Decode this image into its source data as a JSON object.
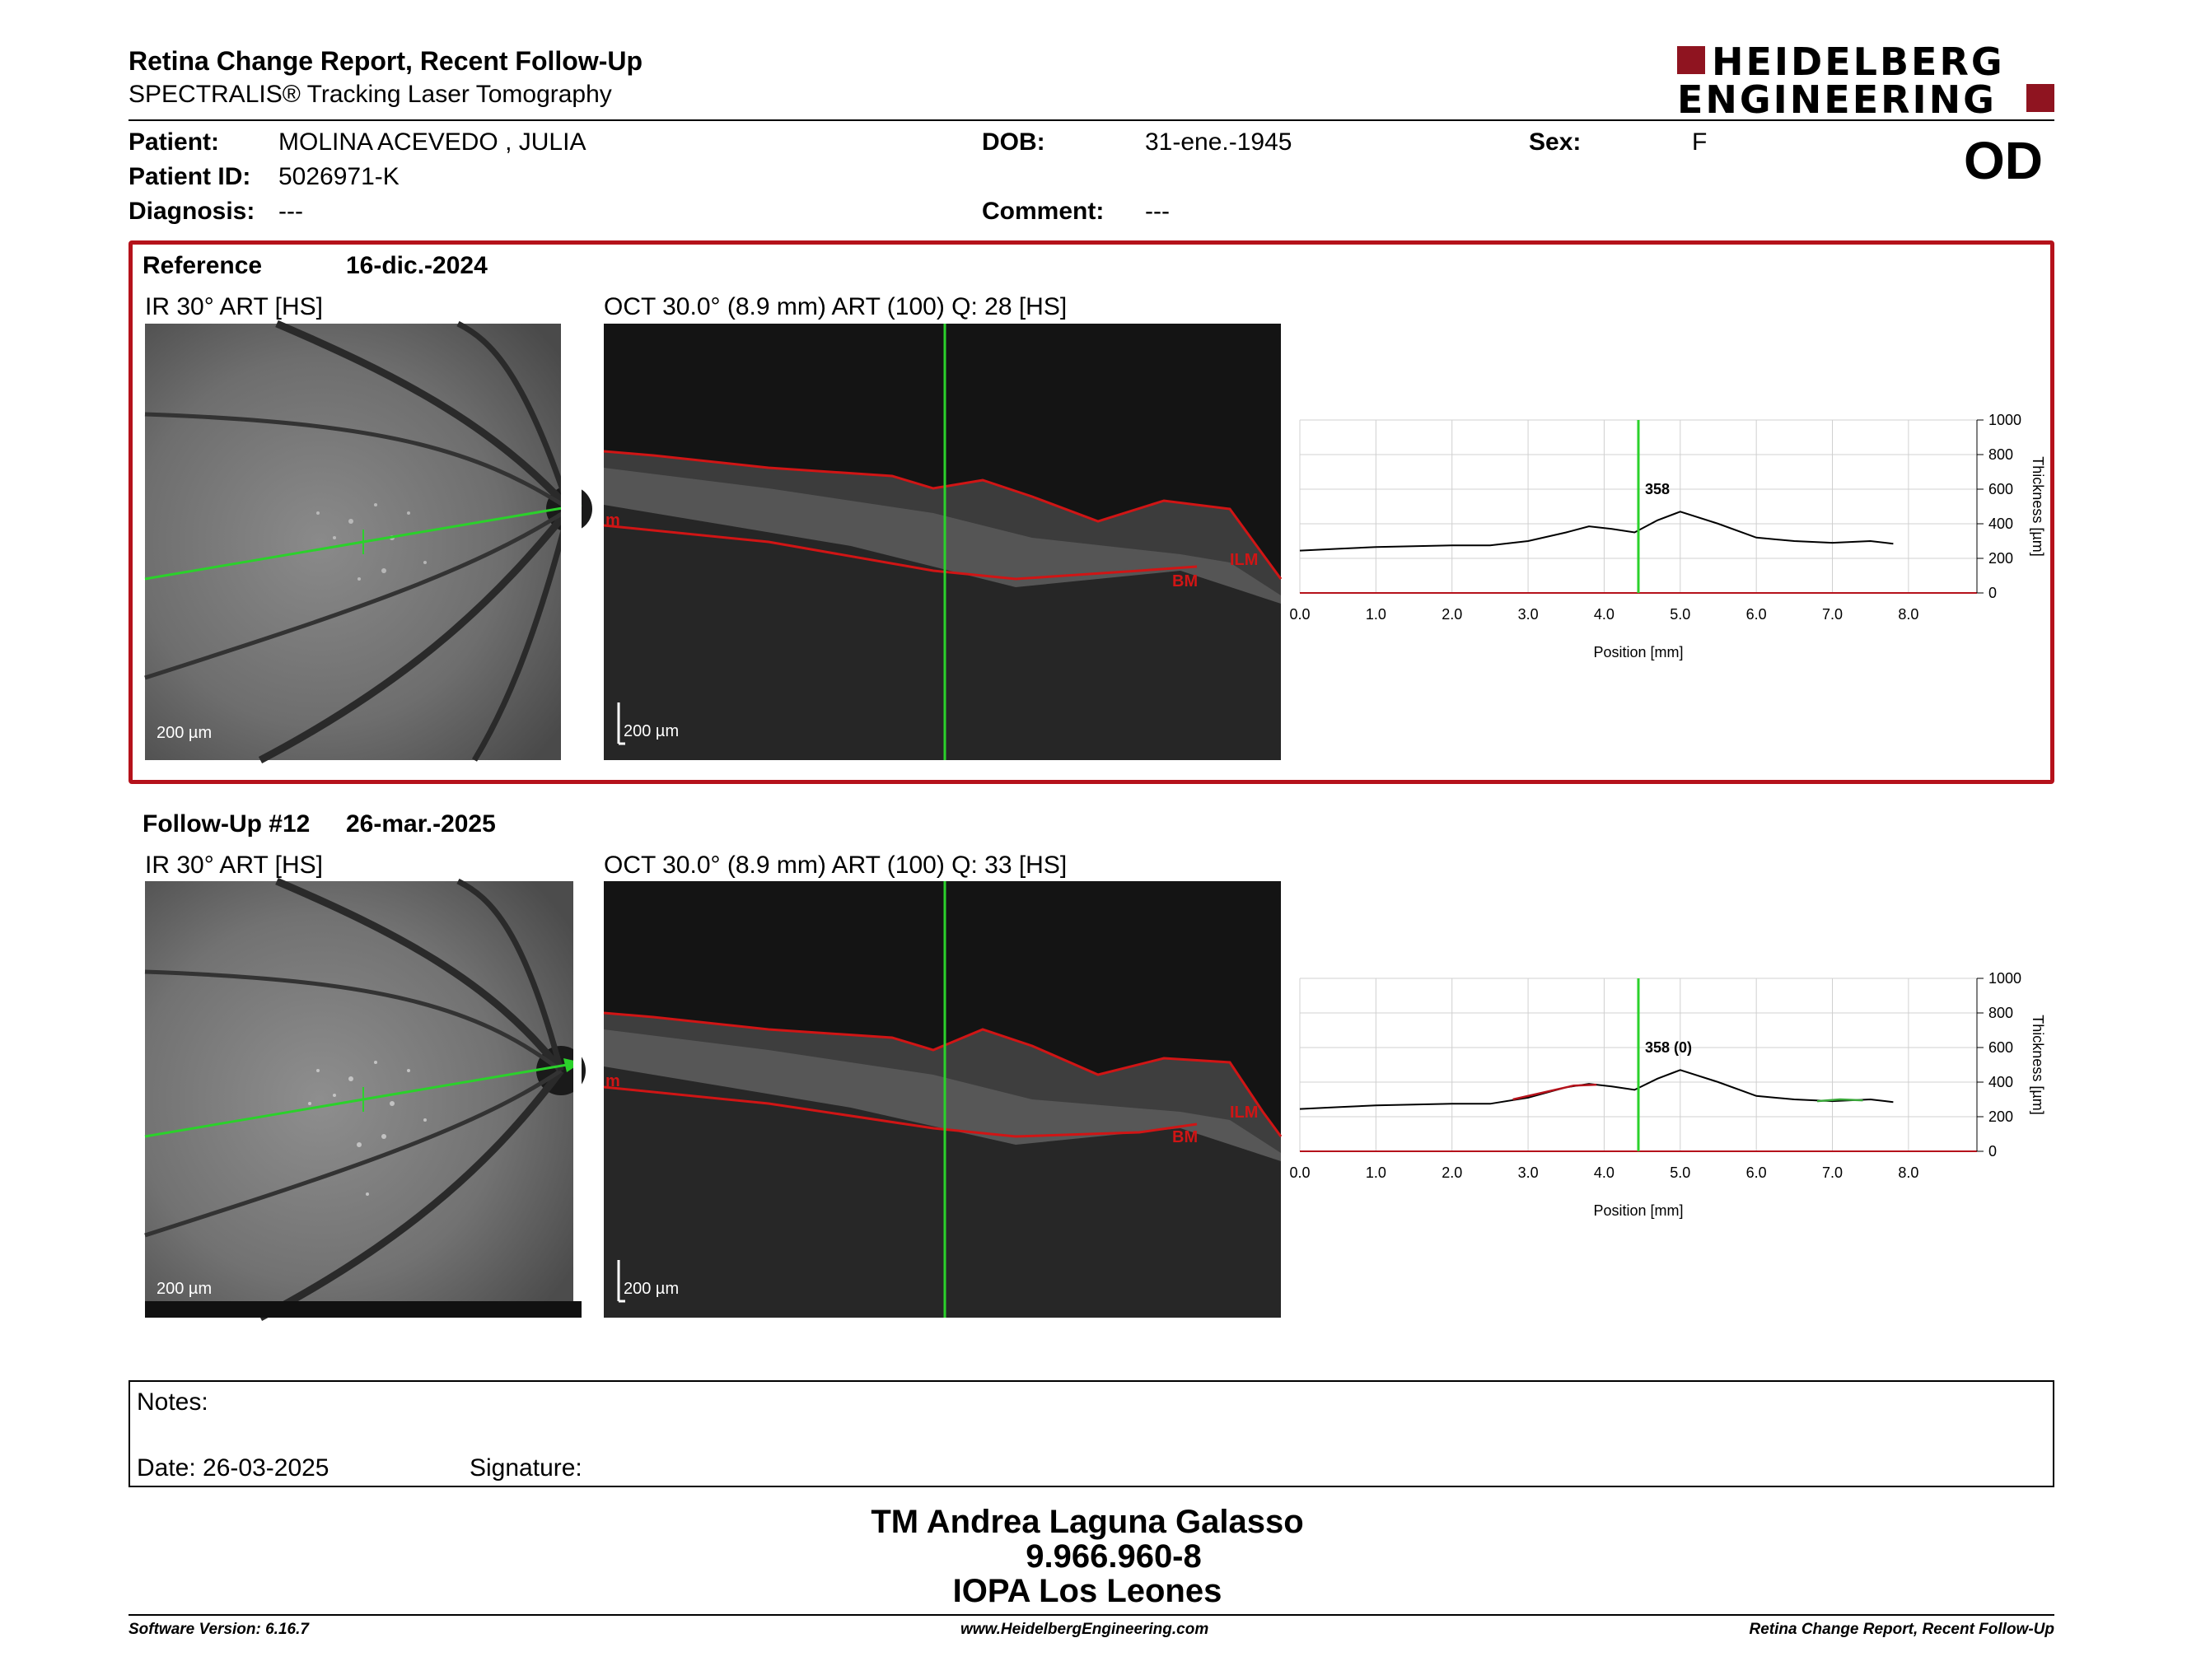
{
  "header": {
    "title": "Retina Change Report, Recent Follow-Up",
    "subtitle": "SPECTRALIS® Tracking Laser Tomography",
    "logo_line1": "HEIDELBERG",
    "logo_line2": "ENGINEERING"
  },
  "patient": {
    "patient_label": "Patient:",
    "patient_value": "MOLINA ACEVEDO , JULIA",
    "id_label": "Patient ID:",
    "id_value": "5026971-K",
    "diagnosis_label": "Diagnosis:",
    "diagnosis_value": "---",
    "dob_label": "DOB:",
    "dob_value": "31-ene.-1945",
    "comment_label": "Comment:",
    "comment_value": "---",
    "sex_label": "Sex:",
    "sex_value": "F",
    "eye": "OD"
  },
  "reference": {
    "label": "Reference",
    "date": "16-dic.-2024",
    "ir_caption": "IR 30° ART [HS]",
    "oct_caption": "OCT 30.0° (8.9 mm) ART (100) Q: 28 [HS]",
    "ir_scale": "200 µm",
    "oct_scale": "200 µm",
    "oct_labels": {
      "ilm": "ILM",
      "bm": "BM",
      "m": "m"
    }
  },
  "followup": {
    "label": "Follow-Up #12",
    "date": "26-mar.-2025",
    "ir_caption": "IR 30° ART [HS]",
    "oct_caption": "OCT 30.0° (8.9 mm) ART (100) Q: 33 [HS]",
    "ir_scale": "200 µm",
    "oct_scale": "200 µm",
    "oct_labels": {
      "ilm": "ILM",
      "bm": "BM",
      "m": "m"
    }
  },
  "chart_data": [
    {
      "type": "line",
      "xlabel": "Position [mm]",
      "ylabel": "Thickness [µm]",
      "xlim": [
        0,
        8.9
      ],
      "ylim": [
        0,
        1000
      ],
      "xticks": [
        "0.0",
        "1.0",
        "2.0",
        "3.0",
        "4.0",
        "5.0",
        "6.0",
        "7.0",
        "8.0"
      ],
      "yticks": [
        "0",
        "200",
        "400",
        "600",
        "800",
        "1000"
      ],
      "marker_x": 4.45,
      "marker_label": "358",
      "grid": true,
      "series": [
        {
          "color": "#000000",
          "x": [
            0,
            0.5,
            1,
            1.5,
            2,
            2.5,
            3,
            3.5,
            3.8,
            4.1,
            4.4,
            4.7,
            5.0,
            5.5,
            6.0,
            6.5,
            7.0,
            7.5,
            7.8
          ],
          "y": [
            245,
            255,
            265,
            270,
            275,
            275,
            300,
            350,
            385,
            370,
            350,
            420,
            470,
            400,
            320,
            300,
            290,
            300,
            285
          ]
        }
      ]
    },
    {
      "type": "line",
      "xlabel": "Position [mm]",
      "ylabel": "Thickness [µm]",
      "xlim": [
        0,
        8.9
      ],
      "ylim": [
        0,
        1000
      ],
      "xticks": [
        "0.0",
        "1.0",
        "2.0",
        "3.0",
        "4.0",
        "5.0",
        "6.0",
        "7.0",
        "8.0"
      ],
      "yticks": [
        "0",
        "200",
        "400",
        "600",
        "800",
        "1000"
      ],
      "marker_x": 4.45,
      "marker_label": "358 (0)",
      "grid": true,
      "series": [
        {
          "color": "#000000",
          "x": [
            0,
            0.5,
            1,
            1.5,
            2,
            2.5,
            3,
            3.5,
            3.8,
            4.1,
            4.4,
            4.7,
            5.0,
            5.5,
            6.0,
            6.5,
            7.0,
            7.5,
            7.8
          ],
          "y": [
            245,
            255,
            265,
            270,
            275,
            275,
            310,
            370,
            390,
            375,
            355,
            420,
            470,
            400,
            320,
            300,
            290,
            300,
            285
          ]
        },
        {
          "color": "#b5121b",
          "x": [
            2.8,
            3.2,
            3.6,
            3.9
          ],
          "y": [
            300,
            340,
            380,
            385
          ]
        },
        {
          "color": "#3aa83a",
          "x": [
            6.8,
            7.1,
            7.4
          ],
          "y": [
            290,
            300,
            295
          ]
        }
      ]
    }
  ],
  "notes": {
    "label": "Notes:",
    "date_label": "Date: 26-03-2025",
    "signature_label": "Signature:"
  },
  "signature": {
    "name": "TM Andrea Laguna Galasso",
    "rut": "9.966.960-8",
    "institution": "IOPA Los Leones"
  },
  "footer": {
    "software": "Software Version: 6.16.7",
    "website": "www.HeidelbergEngineering.com",
    "report": "Retina Change Report, Recent Follow-Up"
  },
  "colors": {
    "brand_red": "#b5121b",
    "scan_green": "#2bd12b",
    "layer_red": "#d01515"
  }
}
